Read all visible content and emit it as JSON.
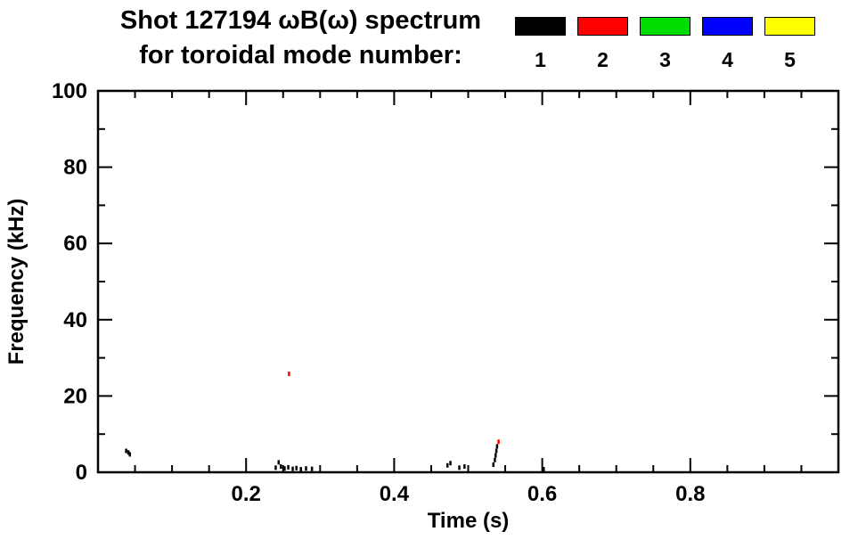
{
  "page": {
    "background": "#ffffff"
  },
  "chart_data": {
    "type": "scatter",
    "title": "Shot 127194 ωB(ω) spectrum",
    "subtitle": "for toroidal mode number:",
    "xlabel": "Time (s)",
    "ylabel": "Frequency (kHz)",
    "xlim": [
      0.0,
      1.0
    ],
    "ylim": [
      0,
      100
    ],
    "xticks": [
      0.2,
      0.4,
      0.6,
      0.8
    ],
    "yticks": [
      0,
      20,
      40,
      60,
      80,
      100
    ],
    "x_minor_tick": 0.05,
    "y_minor_tick": 10,
    "grid": false,
    "legend_position": "top-right",
    "frame_color": "#000000",
    "legend": [
      {
        "label": "1",
        "mode": 1,
        "color": "#000000"
      },
      {
        "label": "2",
        "mode": 2,
        "color": "#ff0000"
      },
      {
        "label": "3",
        "mode": 3,
        "color": "#00dd00"
      },
      {
        "label": "4",
        "mode": 4,
        "color": "#0000ff"
      },
      {
        "label": "5",
        "mode": 5,
        "color": "#ffff00"
      }
    ],
    "points": [
      {
        "t": 0.038,
        "f": 5.6,
        "mode": 1
      },
      {
        "t": 0.041,
        "f": 5.2,
        "mode": 1
      },
      {
        "t": 0.043,
        "f": 4.7,
        "mode": 1
      },
      {
        "t": 0.24,
        "f": 1.2,
        "mode": 1
      },
      {
        "t": 0.244,
        "f": 2.6,
        "mode": 1
      },
      {
        "t": 0.247,
        "f": 1.5,
        "mode": 1
      },
      {
        "t": 0.252,
        "f": 1.0,
        "mode": 1
      },
      {
        "t": 0.257,
        "f": 1.3,
        "mode": 1
      },
      {
        "t": 0.258,
        "f": 25.8,
        "mode": 2
      },
      {
        "t": 0.263,
        "f": 0.9,
        "mode": 1
      },
      {
        "t": 0.268,
        "f": 1.1,
        "mode": 1
      },
      {
        "t": 0.274,
        "f": 0.8,
        "mode": 1
      },
      {
        "t": 0.281,
        "f": 1.0,
        "mode": 1
      },
      {
        "t": 0.289,
        "f": 0.9,
        "mode": 1
      },
      {
        "t": 0.472,
        "f": 1.8,
        "mode": 1
      },
      {
        "t": 0.476,
        "f": 2.4,
        "mode": 1
      },
      {
        "t": 0.488,
        "f": 1.2,
        "mode": 1
      },
      {
        "t": 0.495,
        "f": 1.5,
        "mode": 1
      },
      {
        "t": 0.534,
        "f": 2.0,
        "mode": 1
      },
      {
        "t": 0.536,
        "f": 3.2,
        "mode": 1
      },
      {
        "t": 0.537,
        "f": 4.4,
        "mode": 1
      },
      {
        "t": 0.538,
        "f": 5.6,
        "mode": 1
      },
      {
        "t": 0.539,
        "f": 6.8,
        "mode": 1
      },
      {
        "t": 0.541,
        "f": 8.0,
        "mode": 2
      },
      {
        "t": 0.602,
        "f": 0.8,
        "mode": 1
      }
    ]
  }
}
